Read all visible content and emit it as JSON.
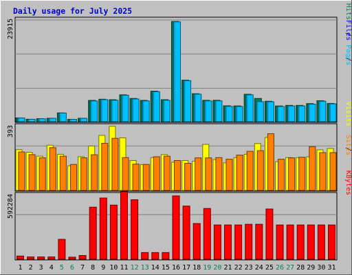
{
  "chart_data": {
    "type": "bar",
    "title": "Daily usage for July 2025",
    "categories": [
      "1",
      "2",
      "3",
      "4",
      "5",
      "6",
      "7",
      "8",
      "9",
      "10",
      "11",
      "12",
      "13",
      "14",
      "15",
      "16",
      "17",
      "18",
      "19",
      "20",
      "21",
      "22",
      "23",
      "24",
      "25",
      "26",
      "27",
      "28",
      "29",
      "30",
      "31"
    ],
    "weekend_days": [
      "5",
      "6",
      "12",
      "13",
      "19",
      "20",
      "26",
      "27"
    ],
    "panels": [
      {
        "name": "hits-files-pages",
        "ymax_label": "23915",
        "ylim": [
          0,
          23915
        ],
        "labels": [
          {
            "text": "Hits",
            "color": "#00805c"
          },
          {
            "text": "Files",
            "color": "#0000ff"
          },
          {
            "text": "Pages",
            "color": "#00c0ff"
          }
        ],
        "series": [
          {
            "name": "Hits",
            "color": "#00805c",
            "values": [
              880,
              570,
              700,
              800,
              2060,
              560,
              800,
              4970,
              5250,
              5130,
              6280,
              5420,
              4970,
              7120,
              5130,
              23400,
              9700,
              6540,
              4990,
              4990,
              3700,
              3670,
              6400,
              5420,
              4760,
              3670,
              3800,
              3800,
              4220,
              4900,
              4270
            ]
          },
          {
            "name": "Pages",
            "color": "#00c0ff",
            "values": [
              860,
              560,
              690,
              780,
              2030,
              550,
              790,
              4850,
              5130,
              5010,
              6160,
              5300,
              4850,
              6990,
              5010,
              23300,
              9580,
              6420,
              4870,
              4870,
              3580,
              3550,
              6280,
              4670,
              4650,
              3550,
              3680,
              3680,
              4100,
              4790,
              4150
            ]
          }
        ]
      },
      {
        "name": "visits-sites",
        "ymax_label": "393",
        "ylim": [
          0,
          393
        ],
        "labels": [
          {
            "text": "Visits",
            "color": "#ffff00"
          },
          {
            "text": "/",
            "color": "#000000"
          },
          {
            "text": "Sites",
            "color": "#ff8000"
          }
        ],
        "series": [
          {
            "name": "Visits",
            "color": "#ffff00",
            "values": [
              248,
              232,
              208,
              275,
              220,
              150,
              205,
              270,
              335,
              390,
              320,
              182,
              157,
              200,
              218,
              172,
              182,
              178,
              280,
              188,
              168,
              200,
              220,
              285,
              322,
              175,
              200,
              200,
              205,
              247,
              255
            ]
          },
          {
            "name": "Sites",
            "color": "#ff8000",
            "values": [
              234,
              218,
              198,
              260,
              208,
              158,
              198,
              217,
              287,
              317,
              200,
              160,
              158,
              205,
              208,
              182,
              165,
              198,
              198,
              200,
              190,
              215,
              238,
              242,
              345,
              190,
              198,
              202,
              266,
              230,
              230
            ]
          }
        ]
      },
      {
        "name": "kbytes",
        "ymax_label": "592284",
        "ylim": [
          0,
          592284
        ],
        "labels": [
          {
            "text": "KBytes",
            "color": "#ff0000"
          }
        ],
        "series": [
          {
            "name": "KBytes",
            "color": "#ff0000",
            "values": [
              29000,
              21000,
              21000,
              21000,
              182000,
              19000,
              34000,
              477000,
              561000,
              496000,
              618000,
              545000,
              61000,
              61000,
              61000,
              580000,
              487000,
              327000,
              465000,
              314000,
              314000,
              314000,
              320000,
              320000,
              460000,
              314000,
              314000,
              314000,
              314000,
              314000,
              314000
            ]
          }
        ]
      }
    ]
  }
}
